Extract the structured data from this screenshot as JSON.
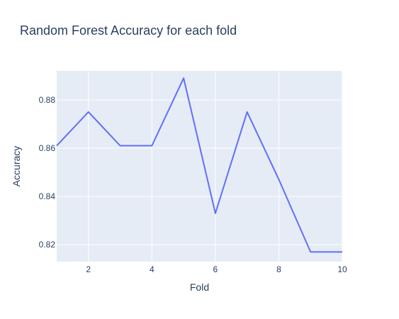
{
  "chart_data": {
    "type": "line",
    "title": "Random Forest Accuracy for each fold",
    "xlabel": "Fold",
    "ylabel": "Accuracy",
    "x": [
      1,
      2,
      3,
      4,
      5,
      6,
      7,
      8,
      9,
      10
    ],
    "series": [
      {
        "values": [
          0.861,
          0.875,
          0.861,
          0.861,
          0.889,
          0.833,
          0.875,
          0.847,
          0.817,
          0.817
        ]
      }
    ],
    "xlim": [
      1,
      10
    ],
    "ylim": [
      0.813,
      0.892
    ],
    "xticks": [
      2,
      4,
      6,
      8,
      10
    ],
    "yticks": [
      0.82,
      0.84,
      0.86,
      0.88
    ],
    "ytick_labels": [
      "0.82",
      "0.84",
      "0.86",
      "0.88"
    ],
    "grid": true,
    "legend": "none",
    "colors": {
      "plot_background": "#E5ECF6",
      "gridline": "#ffffff",
      "line": "#636efa",
      "text": "#2a3f5f"
    }
  }
}
